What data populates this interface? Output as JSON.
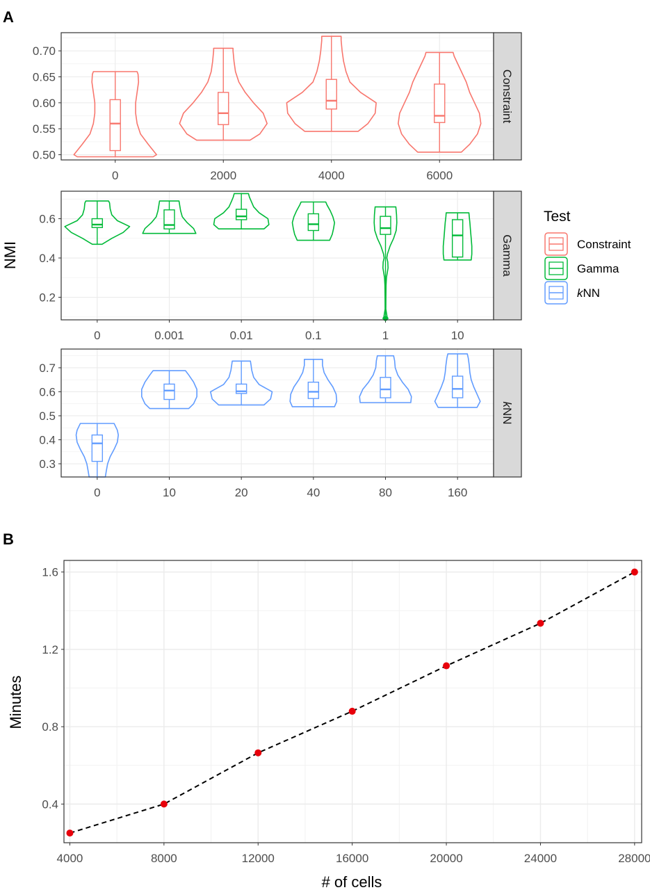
{
  "figure": {
    "panel_a_label": "A",
    "panel_b_label": "B"
  },
  "chart_data": [
    {
      "type": "violin",
      "panel": "A",
      "ylabel": "NMI",
      "legend": {
        "title": "Test",
        "placement": "right",
        "entries": [
          {
            "name": "Constraint",
            "color": "#F8766D"
          },
          {
            "name": "Gamma",
            "color": "#00BA38"
          },
          {
            "name": "kNN",
            "prefix": "k",
            "suffix": "NN",
            "color": "#619CFF"
          }
        ]
      },
      "facets": [
        {
          "name": "Constraint",
          "color": "#F8766D",
          "categories": [
            "0",
            "2000",
            "4000",
            "6000"
          ],
          "ylim": [
            0.49,
            0.735
          ],
          "yticks": [
            0.5,
            0.55,
            0.6,
            0.65,
            0.7
          ],
          "ytick_labels": [
            "0.50",
            "0.55",
            "0.60",
            "0.65",
            "0.70"
          ],
          "grid": true,
          "violins": [
            {
              "category": "0",
              "min": 0.496,
              "q1": 0.508,
              "median": 0.56,
              "q3": 0.606,
              "max": 0.66,
              "profile": [
                [
                  0.496,
                  0.78
                ],
                [
                  0.5,
                  0.85
                ],
                [
                  0.52,
                  0.68
                ],
                [
                  0.54,
                  0.52
                ],
                [
                  0.56,
                  0.45
                ],
                [
                  0.58,
                  0.42
                ],
                [
                  0.6,
                  0.42
                ],
                [
                  0.62,
                  0.45
                ],
                [
                  0.64,
                  0.48
                ],
                [
                  0.655,
                  0.47
                ],
                [
                  0.66,
                  0.45
                ]
              ]
            },
            {
              "category": "2000",
              "min": 0.528,
              "q1": 0.558,
              "median": 0.58,
              "q3": 0.62,
              "max": 0.705,
              "profile": [
                [
                  0.528,
                  0.55
                ],
                [
                  0.54,
                  0.75
                ],
                [
                  0.56,
                  0.9
                ],
                [
                  0.58,
                  0.82
                ],
                [
                  0.6,
                  0.62
                ],
                [
                  0.62,
                  0.45
                ],
                [
                  0.64,
                  0.32
                ],
                [
                  0.66,
                  0.25
                ],
                [
                  0.68,
                  0.22
                ],
                [
                  0.7,
                  0.2
                ],
                [
                  0.705,
                  0.2
                ]
              ]
            },
            {
              "category": "4000",
              "min": 0.545,
              "q1": 0.588,
              "median": 0.604,
              "q3": 0.645,
              "max": 0.728,
              "profile": [
                [
                  0.545,
                  0.55
                ],
                [
                  0.56,
                  0.75
                ],
                [
                  0.58,
                  0.9
                ],
                [
                  0.6,
                  0.92
                ],
                [
                  0.62,
                  0.6
                ],
                [
                  0.64,
                  0.38
                ],
                [
                  0.66,
                  0.3
                ],
                [
                  0.68,
                  0.25
                ],
                [
                  0.7,
                  0.22
                ],
                [
                  0.72,
                  0.2
                ],
                [
                  0.728,
                  0.2
                ]
              ]
            },
            {
              "category": "6000",
              "min": 0.505,
              "q1": 0.562,
              "median": 0.575,
              "q3": 0.636,
              "max": 0.697,
              "profile": [
                [
                  0.505,
                  0.45
                ],
                [
                  0.52,
                  0.62
                ],
                [
                  0.54,
                  0.78
                ],
                [
                  0.56,
                  0.85
                ],
                [
                  0.58,
                  0.82
                ],
                [
                  0.6,
                  0.72
                ],
                [
                  0.62,
                  0.62
                ],
                [
                  0.64,
                  0.55
                ],
                [
                  0.66,
                  0.45
                ],
                [
                  0.68,
                  0.35
                ],
                [
                  0.69,
                  0.3
                ],
                [
                  0.697,
                  0.28
                ]
              ]
            }
          ]
        },
        {
          "name": "Gamma",
          "color": "#00BA38",
          "categories": [
            "0",
            "0.001",
            "0.01",
            "0.1",
            "1",
            "10"
          ],
          "ylim": [
            0.085,
            0.74
          ],
          "yticks": [
            0.2,
            0.4,
            0.6
          ],
          "ytick_labels": [
            "0.2",
            "0.4",
            "0.6"
          ],
          "grid": true,
          "violins": [
            {
              "category": "0",
              "min": 0.47,
              "q1": 0.555,
              "median": 0.57,
              "q3": 0.6,
              "max": 0.69,
              "profile": [
                [
                  0.47,
                  0.15
                ],
                [
                  0.5,
                  0.45
                ],
                [
                  0.53,
                  0.8
                ],
                [
                  0.56,
                  1.0
                ],
                [
                  0.59,
                  0.62
                ],
                [
                  0.62,
                  0.45
                ],
                [
                  0.65,
                  0.4
                ],
                [
                  0.68,
                  0.38
                ],
                [
                  0.69,
                  0.35
                ]
              ]
            },
            {
              "category": "0.001",
              "min": 0.525,
              "q1": 0.548,
              "median": 0.568,
              "q3": 0.645,
              "max": 0.69,
              "profile": [
                [
                  0.525,
                  0.82
                ],
                [
                  0.55,
                  0.75
                ],
                [
                  0.58,
                  0.55
                ],
                [
                  0.61,
                  0.4
                ],
                [
                  0.64,
                  0.35
                ],
                [
                  0.67,
                  0.32
                ],
                [
                  0.69,
                  0.3
                ]
              ]
            },
            {
              "category": "0.01",
              "min": 0.548,
              "q1": 0.595,
              "median": 0.612,
              "q3": 0.648,
              "max": 0.728,
              "profile": [
                [
                  0.548,
                  0.7
                ],
                [
                  0.57,
                  0.85
                ],
                [
                  0.6,
                  0.82
                ],
                [
                  0.63,
                  0.55
                ],
                [
                  0.66,
                  0.38
                ],
                [
                  0.69,
                  0.3
                ],
                [
                  0.71,
                  0.25
                ],
                [
                  0.728,
                  0.22
                ]
              ]
            },
            {
              "category": "0.1",
              "min": 0.49,
              "q1": 0.54,
              "median": 0.572,
              "q3": 0.625,
              "max": 0.685,
              "profile": [
                [
                  0.49,
                  0.5
                ],
                [
                  0.52,
                  0.58
                ],
                [
                  0.55,
                  0.62
                ],
                [
                  0.58,
                  0.65
                ],
                [
                  0.61,
                  0.6
                ],
                [
                  0.64,
                  0.52
                ],
                [
                  0.67,
                  0.42
                ],
                [
                  0.685,
                  0.38
                ]
              ]
            },
            {
              "category": "1",
              "min": 0.092,
              "q1": 0.52,
              "median": 0.552,
              "q3": 0.612,
              "max": 0.66,
              "profile": [
                [
                  0.092,
                  0.08
                ],
                [
                  0.1,
                  0.05
                ],
                [
                  0.14,
                  0.01
                ],
                [
                  0.2,
                  0.012
                ],
                [
                  0.26,
                  0.018
                ],
                [
                  0.3,
                  0.03
                ],
                [
                  0.35,
                  0.08
                ],
                [
                  0.38,
                  0.07
                ],
                [
                  0.4,
                  0.04
                ],
                [
                  0.42,
                  0.06
                ],
                [
                  0.46,
                  0.14
                ],
                [
                  0.5,
                  0.25
                ],
                [
                  0.54,
                  0.33
                ],
                [
                  0.58,
                  0.35
                ],
                [
                  0.62,
                  0.34
                ],
                [
                  0.66,
                  0.32
                ]
              ]
            },
            {
              "category": "10",
              "min": 0.39,
              "q1": 0.405,
              "median": 0.515,
              "q3": 0.595,
              "max": 0.63,
              "profile": [
                [
                  0.39,
                  0.42
                ],
                [
                  0.42,
                  0.44
                ],
                [
                  0.46,
                  0.44
                ],
                [
                  0.5,
                  0.42
                ],
                [
                  0.54,
                  0.4
                ],
                [
                  0.58,
                  0.38
                ],
                [
                  0.61,
                  0.36
                ],
                [
                  0.63,
                  0.35
                ]
              ]
            }
          ]
        },
        {
          "name": "kNN",
          "name_prefix": "k",
          "name_suffix": "NN",
          "color": "#619CFF",
          "categories": [
            "0",
            "10",
            "20",
            "40",
            "80",
            "160"
          ],
          "ylim": [
            0.245,
            0.778
          ],
          "yticks": [
            0.3,
            0.4,
            0.5,
            0.6,
            0.7
          ],
          "ytick_labels": [
            "0.3",
            "0.4",
            "0.5",
            "0.6",
            "0.7"
          ],
          "grid": true,
          "violins": [
            {
              "category": "0",
              "min": 0.245,
              "q1": 0.31,
              "median": 0.385,
              "q3": 0.42,
              "max": 0.468,
              "profile": [
                [
                  0.245,
                  0.25
                ],
                [
                  0.27,
                  0.28
                ],
                [
                  0.3,
                  0.32
                ],
                [
                  0.33,
                  0.4
                ],
                [
                  0.36,
                  0.52
                ],
                [
                  0.39,
                  0.62
                ],
                [
                  0.42,
                  0.65
                ],
                [
                  0.44,
                  0.62
                ],
                [
                  0.46,
                  0.55
                ],
                [
                  0.468,
                  0.52
                ]
              ]
            },
            {
              "category": "10",
              "min": 0.53,
              "q1": 0.568,
              "median": 0.605,
              "q3": 0.632,
              "max": 0.688,
              "profile": [
                [
                  0.53,
                  0.6
                ],
                [
                  0.55,
                  0.75
                ],
                [
                  0.58,
                  0.85
                ],
                [
                  0.61,
                  0.85
                ],
                [
                  0.64,
                  0.75
                ],
                [
                  0.67,
                  0.6
                ],
                [
                  0.688,
                  0.5
                ]
              ]
            },
            {
              "category": "20",
              "min": 0.545,
              "q1": 0.593,
              "median": 0.602,
              "q3": 0.632,
              "max": 0.728,
              "profile": [
                [
                  0.545,
                  0.7
                ],
                [
                  0.57,
                  0.9
                ],
                [
                  0.6,
                  0.95
                ],
                [
                  0.63,
                  0.55
                ],
                [
                  0.66,
                  0.38
                ],
                [
                  0.69,
                  0.32
                ],
                [
                  0.71,
                  0.3
                ],
                [
                  0.728,
                  0.28
                ]
              ]
            },
            {
              "category": "40",
              "min": 0.538,
              "q1": 0.572,
              "median": 0.6,
              "q3": 0.64,
              "max": 0.735,
              "profile": [
                [
                  0.538,
                  0.65
                ],
                [
                  0.56,
                  0.72
                ],
                [
                  0.59,
                  0.7
                ],
                [
                  0.62,
                  0.6
                ],
                [
                  0.65,
                  0.45
                ],
                [
                  0.68,
                  0.33
                ],
                [
                  0.71,
                  0.28
                ],
                [
                  0.735,
                  0.28
                ]
              ]
            },
            {
              "category": "80",
              "min": 0.555,
              "q1": 0.575,
              "median": 0.61,
              "q3": 0.66,
              "max": 0.75,
              "profile": [
                [
                  0.555,
                  0.78
                ],
                [
                  0.58,
                  0.8
                ],
                [
                  0.61,
                  0.7
                ],
                [
                  0.64,
                  0.52
                ],
                [
                  0.67,
                  0.38
                ],
                [
                  0.7,
                  0.3
                ],
                [
                  0.73,
                  0.28
                ],
                [
                  0.75,
                  0.25
                ]
              ]
            },
            {
              "category": "160",
              "min": 0.535,
              "q1": 0.575,
              "median": 0.612,
              "q3": 0.665,
              "max": 0.758,
              "profile": [
                [
                  0.535,
                  0.6
                ],
                [
                  0.56,
                  0.7
                ],
                [
                  0.59,
                  0.6
                ],
                [
                  0.62,
                  0.5
                ],
                [
                  0.65,
                  0.42
                ],
                [
                  0.68,
                  0.38
                ],
                [
                  0.71,
                  0.36
                ],
                [
                  0.74,
                  0.33
                ],
                [
                  0.758,
                  0.3
                ]
              ]
            }
          ]
        }
      ]
    },
    {
      "type": "line",
      "panel": "B",
      "xlabel": "# of cells",
      "ylabel": "Minutes",
      "xlim": [
        3750,
        28300
      ],
      "ylim": [
        0.2,
        1.66
      ],
      "xticks": [
        4000,
        8000,
        12000,
        16000,
        20000,
        24000,
        28000
      ],
      "xtick_labels": [
        "4000",
        "8000",
        "12000",
        "16000",
        "20000",
        "24000",
        "28000"
      ],
      "yticks": [
        0.4,
        0.8,
        1.2,
        1.6
      ],
      "ytick_labels": [
        "0.4",
        "0.8",
        "1.2",
        "1.6"
      ],
      "grid": true,
      "x": [
        4000,
        8000,
        12000,
        16000,
        20000,
        24000,
        28000
      ],
      "y": [
        0.25,
        0.4,
        0.665,
        0.88,
        1.115,
        1.335,
        1.6
      ],
      "line_color": "#000000",
      "line_style": "dashed",
      "point_color": "#E8000B"
    }
  ]
}
